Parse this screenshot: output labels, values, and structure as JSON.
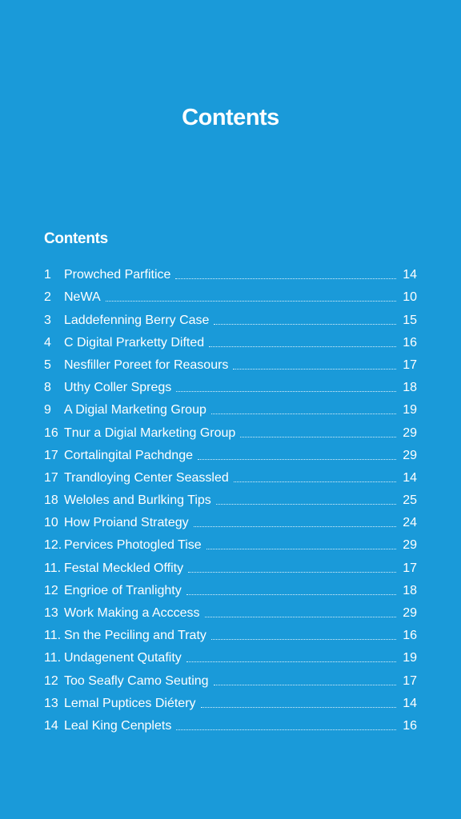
{
  "page": {
    "title": "Contents"
  },
  "toc": {
    "heading": "Contents",
    "items": [
      {
        "num": "1",
        "title": "Prowched Parfitice",
        "page": "14"
      },
      {
        "num": "2",
        "title": "NeWA",
        "page": "10"
      },
      {
        "num": "3",
        "title": "Laddefenning Berry Case",
        "page": "15"
      },
      {
        "num": "4",
        "title": "C Digital Prarketty Difted",
        "page": "16"
      },
      {
        "num": "5",
        "title": "Nesfiller Poreet for Reasours",
        "page": "17"
      },
      {
        "num": "8",
        "title": "Uthy Coller Spregs",
        "page": "18"
      },
      {
        "num": "9",
        "title": "A Digial Marketing Group",
        "page": "19"
      },
      {
        "num": "16",
        "title": "Tnur a Digial Marketing Group",
        "page": "29"
      },
      {
        "num": "17",
        "title": "Cortalingital Pachdnge",
        "page": "29"
      },
      {
        "num": "17",
        "title": "Trandloying Center Seassled",
        "page": "14"
      },
      {
        "num": "18",
        "title": "Weloles and Burlking Tips",
        "page": "25"
      },
      {
        "num": "10",
        "title": "How Proiand Strategy",
        "page": "24"
      },
      {
        "num": "12.",
        "title": "Pervices Photogled Tise",
        "page": "29"
      },
      {
        "num": "11.",
        "title": "Festal Meckled Offity",
        "page": "17"
      },
      {
        "num": "12",
        "title": "Engrioe of Tranlighty",
        "page": "18"
      },
      {
        "num": "13",
        "title": "Work Making a Acccess",
        "page": "29"
      },
      {
        "num": "11.",
        "title": "Sn the Peciling and Traty",
        "page": "16"
      },
      {
        "num": "11.",
        "title": "Undagenent Qutafity",
        "page": "19"
      },
      {
        "num": "12",
        "title": "Too Seafly Camo Seuting",
        "page": "17"
      },
      {
        "num": "13",
        "title": "Lemal Puptices Diétery",
        "page": "14"
      },
      {
        "num": "14",
        "title": "Leal King Cenplets",
        "page": "16"
      }
    ]
  }
}
